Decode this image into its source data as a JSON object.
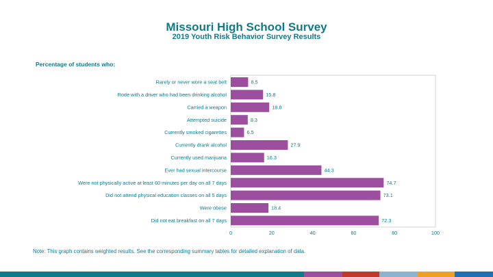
{
  "header": {
    "title": "Missouri High School Survey",
    "subtitle": "2019 Youth Risk Behavior Survey Results"
  },
  "section_label": "Percentage of students who:",
  "note": "Note: This graph contains weighted results. See the corresponding summary tables for detailed explanation of data.",
  "colors": {
    "accent": "#0e7a8a",
    "bar": "#9b4f9e",
    "footer": [
      "#0e7a8a",
      "#9b4f9e",
      "#c0392b",
      "#8fb3cf",
      "#f0a020",
      "#1f6fb5"
    ]
  },
  "chart_data": {
    "type": "bar",
    "orientation": "horizontal",
    "categories": [
      "Rarely or never wore a seat belt",
      "Rode with a driver who had been drinking alcohol",
      "Carried a weapon",
      "Attempted suicide",
      "Currently smoked cigarettes",
      "Currently drank alcohol",
      "Currently used marijuana",
      "Ever had sexual intercourse",
      "Were not physically active at least 60 minutes per day on all 7 days",
      "Did not attend physical education classes on all 5 days",
      "Were obese",
      "Did not eat breakfast on all 7 days"
    ],
    "values": [
      8.5,
      15.8,
      18.8,
      8.3,
      6.5,
      27.9,
      16.3,
      44.3,
      74.7,
      73.1,
      18.4,
      72.3
    ],
    "value_labels": [
      "8.5",
      "15.8",
      "18.8",
      "8.3",
      "6.5",
      "27.9",
      "16.3",
      "44.3",
      "74.7",
      "73.1",
      "18.4",
      "72.3"
    ],
    "xlim": [
      0,
      100
    ],
    "xticks": [
      0,
      20,
      40,
      60,
      80,
      100
    ],
    "xtick_labels": [
      "0",
      "20",
      "40",
      "60",
      "80",
      "100"
    ],
    "grid": false,
    "legend": "none"
  }
}
